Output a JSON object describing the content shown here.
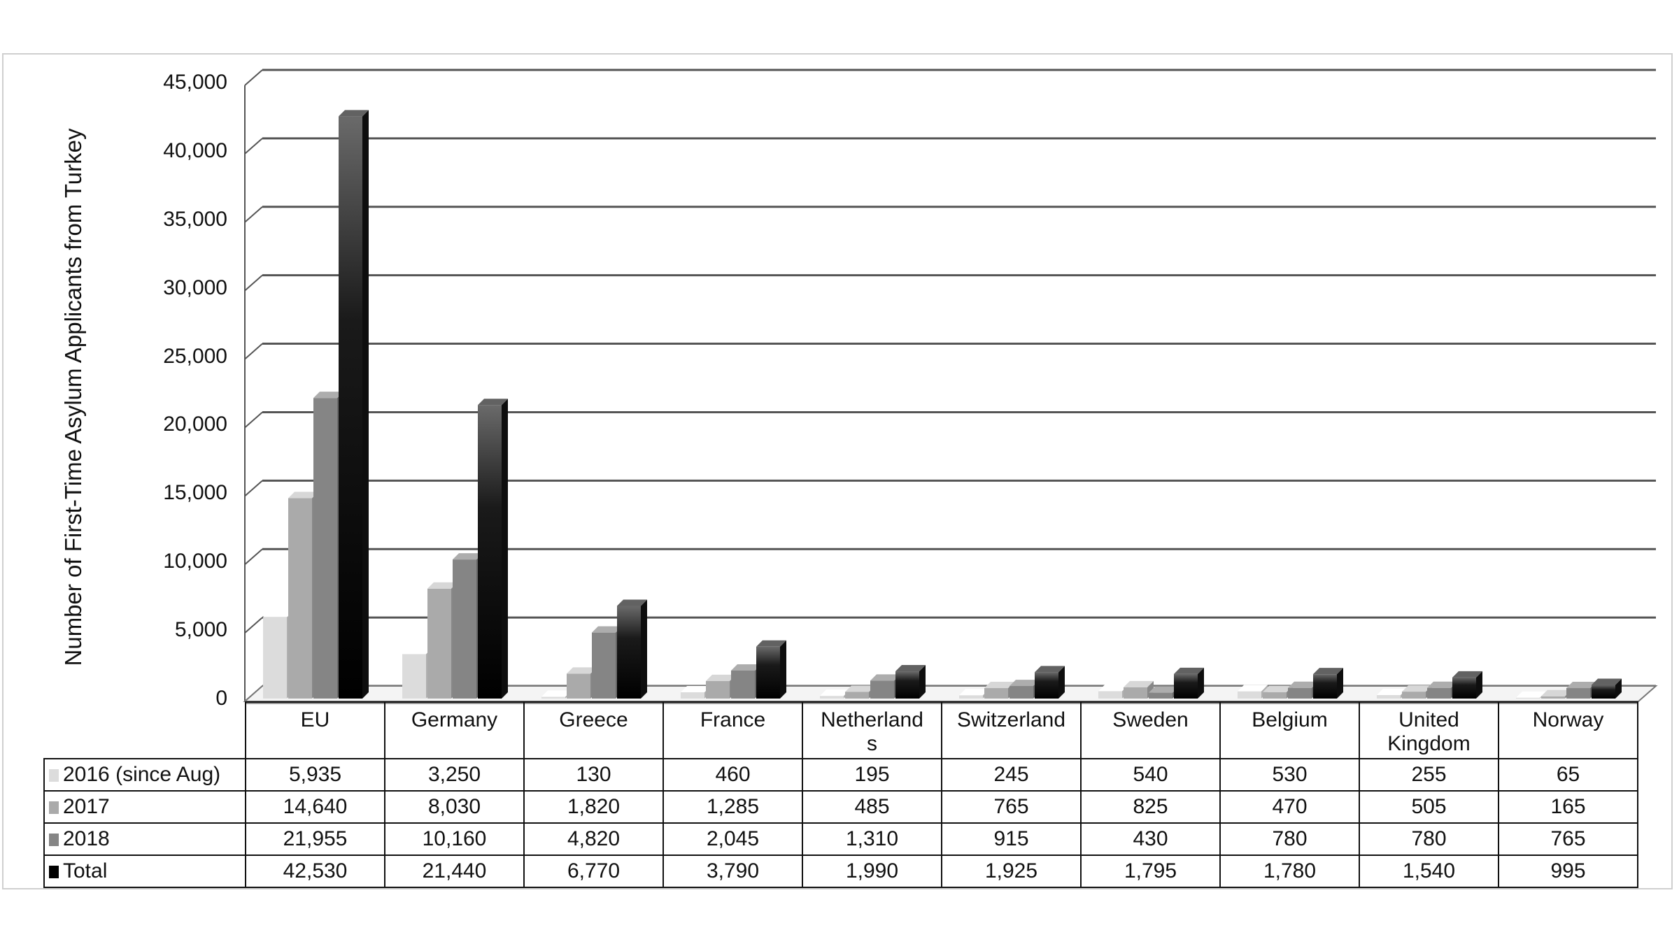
{
  "chart_data": {
    "type": "bar",
    "style": "3d-clustered-column-with-data-table",
    "title": "",
    "xlabel": "",
    "ylabel": "Number of First-Time Asylum Applicants from Turkey",
    "ylim": [
      0,
      45000
    ],
    "yticks": [
      "0",
      "5,000",
      "10,000",
      "15,000",
      "20,000",
      "25,000",
      "30,000",
      "35,000",
      "40,000",
      "45,000"
    ],
    "grid": true,
    "legend_position": "data-table",
    "categories": [
      "EU",
      "Germany",
      "Greece",
      "France",
      "Netherlands",
      "Switzerland",
      "Sweden",
      "Belgium",
      "United Kingdom",
      "Norway"
    ],
    "category_labels_display": [
      [
        "EU"
      ],
      [
        "Germany"
      ],
      [
        "Greece"
      ],
      [
        "France"
      ],
      [
        "Netherland",
        "s"
      ],
      [
        "Switzerland"
      ],
      [
        "Sweden"
      ],
      [
        "Belgium"
      ],
      [
        "United",
        "Kingdom"
      ],
      [
        "Norway"
      ]
    ],
    "series": [
      {
        "name": "2016 (since Aug)",
        "color": "#dcdcdc",
        "values": [
          5935,
          3250,
          130,
          460,
          195,
          245,
          540,
          530,
          255,
          65
        ],
        "display": [
          "5,935",
          "3,250",
          "130",
          "460",
          "195",
          "245",
          "540",
          "530",
          "255",
          "65"
        ]
      },
      {
        "name": "2017",
        "color": "#aaaaaa",
        "values": [
          14640,
          8030,
          1820,
          1285,
          485,
          765,
          825,
          470,
          505,
          165
        ],
        "display": [
          "14,640",
          "8,030",
          "1,820",
          "1,285",
          "485",
          "765",
          "825",
          "470",
          "505",
          "165"
        ]
      },
      {
        "name": "2018",
        "color": "#858585",
        "values": [
          21955,
          10160,
          4820,
          2045,
          1310,
          915,
          430,
          780,
          780,
          765
        ],
        "display": [
          "21,955",
          "10,160",
          "4,820",
          "2,045",
          "1,310",
          "915",
          "430",
          "780",
          "780",
          "765"
        ]
      },
      {
        "name": "Total",
        "color": "#000000",
        "values": [
          42530,
          21440,
          6770,
          3790,
          1990,
          1925,
          1795,
          1780,
          1540,
          995
        ],
        "display": [
          "42,530",
          "21,440",
          "6,770",
          "3,790",
          "1,990",
          "1,925",
          "1,795",
          "1,780",
          "1,540",
          "995"
        ]
      }
    ]
  }
}
